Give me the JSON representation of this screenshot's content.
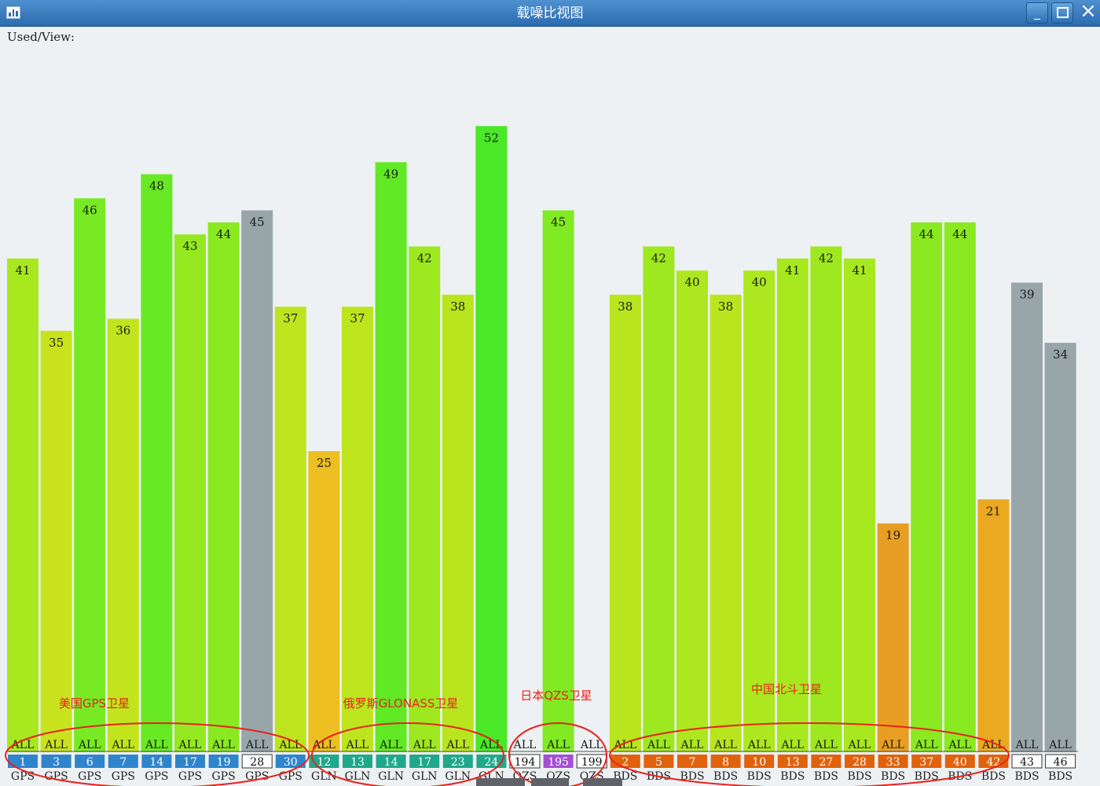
{
  "window": {
    "title": "载噪比视图",
    "minimize_label": "_",
    "close_label": "×"
  },
  "used_view_label": "Used/View:",
  "colors": {
    "gps_tag": "#2e85cc",
    "gln_tag": "#1fa88a",
    "qzs_tag": "#a54fd3",
    "bds_tag": "#e0620d",
    "unused_bar": "#98a6aa",
    "annotation": "#e8221d"
  },
  "annotations": [
    {
      "text": "美国GPS卫星",
      "group": "GPS"
    },
    {
      "text": "俄罗斯GLONASS卫星",
      "group": "GLN"
    },
    {
      "text": "日本QZS卫星",
      "group": "QZS"
    },
    {
      "text": "中国北斗卫星",
      "group": "BDS"
    }
  ],
  "chart_data": {
    "type": "bar",
    "title": "",
    "xlabel": "",
    "ylabel": "",
    "ylim": [
      0,
      60
    ],
    "grid": false,
    "legend": "none",
    "band_label": "ALL",
    "satellites": [
      {
        "id": "1",
        "system": "GPS",
        "snr": 41,
        "used": true
      },
      {
        "id": "3",
        "system": "GPS",
        "snr": 35,
        "used": true
      },
      {
        "id": "6",
        "system": "GPS",
        "snr": 46,
        "used": true
      },
      {
        "id": "7",
        "system": "GPS",
        "snr": 36,
        "used": true
      },
      {
        "id": "14",
        "system": "GPS",
        "snr": 48,
        "used": true
      },
      {
        "id": "17",
        "system": "GPS",
        "snr": 43,
        "used": true
      },
      {
        "id": "19",
        "system": "GPS",
        "snr": 44,
        "used": true
      },
      {
        "id": "28",
        "system": "GPS",
        "snr": 45,
        "used": false
      },
      {
        "id": "30",
        "system": "GPS",
        "snr": 37,
        "used": true
      },
      {
        "id": "12",
        "system": "GLN",
        "snr": 25,
        "used": true
      },
      {
        "id": "13",
        "system": "GLN",
        "snr": 37,
        "used": true
      },
      {
        "id": "14",
        "system": "GLN",
        "snr": 49,
        "used": true
      },
      {
        "id": "17",
        "system": "GLN",
        "snr": 42,
        "used": true
      },
      {
        "id": "23",
        "system": "GLN",
        "snr": 38,
        "used": true
      },
      {
        "id": "24",
        "system": "GLN",
        "snr": 52,
        "used": true
      },
      {
        "id": "194",
        "system": "QZS",
        "snr": null,
        "used": false
      },
      {
        "id": "195",
        "system": "QZS",
        "snr": 45,
        "used": true
      },
      {
        "id": "199",
        "system": "QZS",
        "snr": null,
        "used": false
      },
      {
        "id": "2",
        "system": "BDS",
        "snr": 38,
        "used": true
      },
      {
        "id": "5",
        "system": "BDS",
        "snr": 42,
        "used": true
      },
      {
        "id": "7",
        "system": "BDS",
        "snr": 40,
        "used": true
      },
      {
        "id": "8",
        "system": "BDS",
        "snr": 38,
        "used": true
      },
      {
        "id": "10",
        "system": "BDS",
        "snr": 40,
        "used": true
      },
      {
        "id": "13",
        "system": "BDS",
        "snr": 41,
        "used": true
      },
      {
        "id": "27",
        "system": "BDS",
        "snr": 42,
        "used": true
      },
      {
        "id": "28",
        "system": "BDS",
        "snr": 41,
        "used": true
      },
      {
        "id": "33",
        "system": "BDS",
        "snr": 19,
        "used": true
      },
      {
        "id": "37",
        "system": "BDS",
        "snr": 44,
        "used": true
      },
      {
        "id": "40",
        "system": "BDS",
        "snr": 44,
        "used": true
      },
      {
        "id": "42",
        "system": "BDS",
        "snr": 21,
        "used": true
      },
      {
        "id": "43",
        "system": "BDS",
        "snr": 39,
        "used": false
      },
      {
        "id": "46",
        "system": "BDS",
        "snr": 34,
        "used": false
      }
    ]
  }
}
